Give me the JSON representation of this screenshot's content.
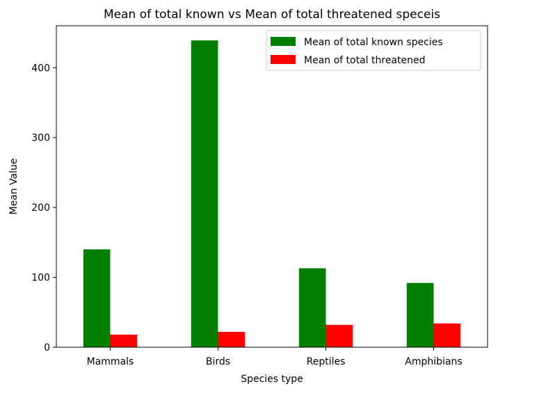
{
  "chart_data": {
    "type": "bar",
    "title": "Mean of total known vs Mean of total threatened speceis",
    "xlabel": "Species type",
    "ylabel": "Mean Value",
    "categories": [
      "Mammals",
      "Birds",
      "Reptiles",
      "Amphibians"
    ],
    "series": [
      {
        "name": "Mean of total known species",
        "color": "#008000",
        "values": [
          140,
          439,
          113,
          92
        ]
      },
      {
        "name": "Mean of total threatened",
        "color": "#ff0000",
        "values": [
          18,
          22,
          32,
          34
        ]
      }
    ],
    "ylim": [
      0,
      460
    ],
    "yticks": [
      0,
      100,
      200,
      300,
      400
    ],
    "grid": false,
    "legend": "top-right"
  }
}
